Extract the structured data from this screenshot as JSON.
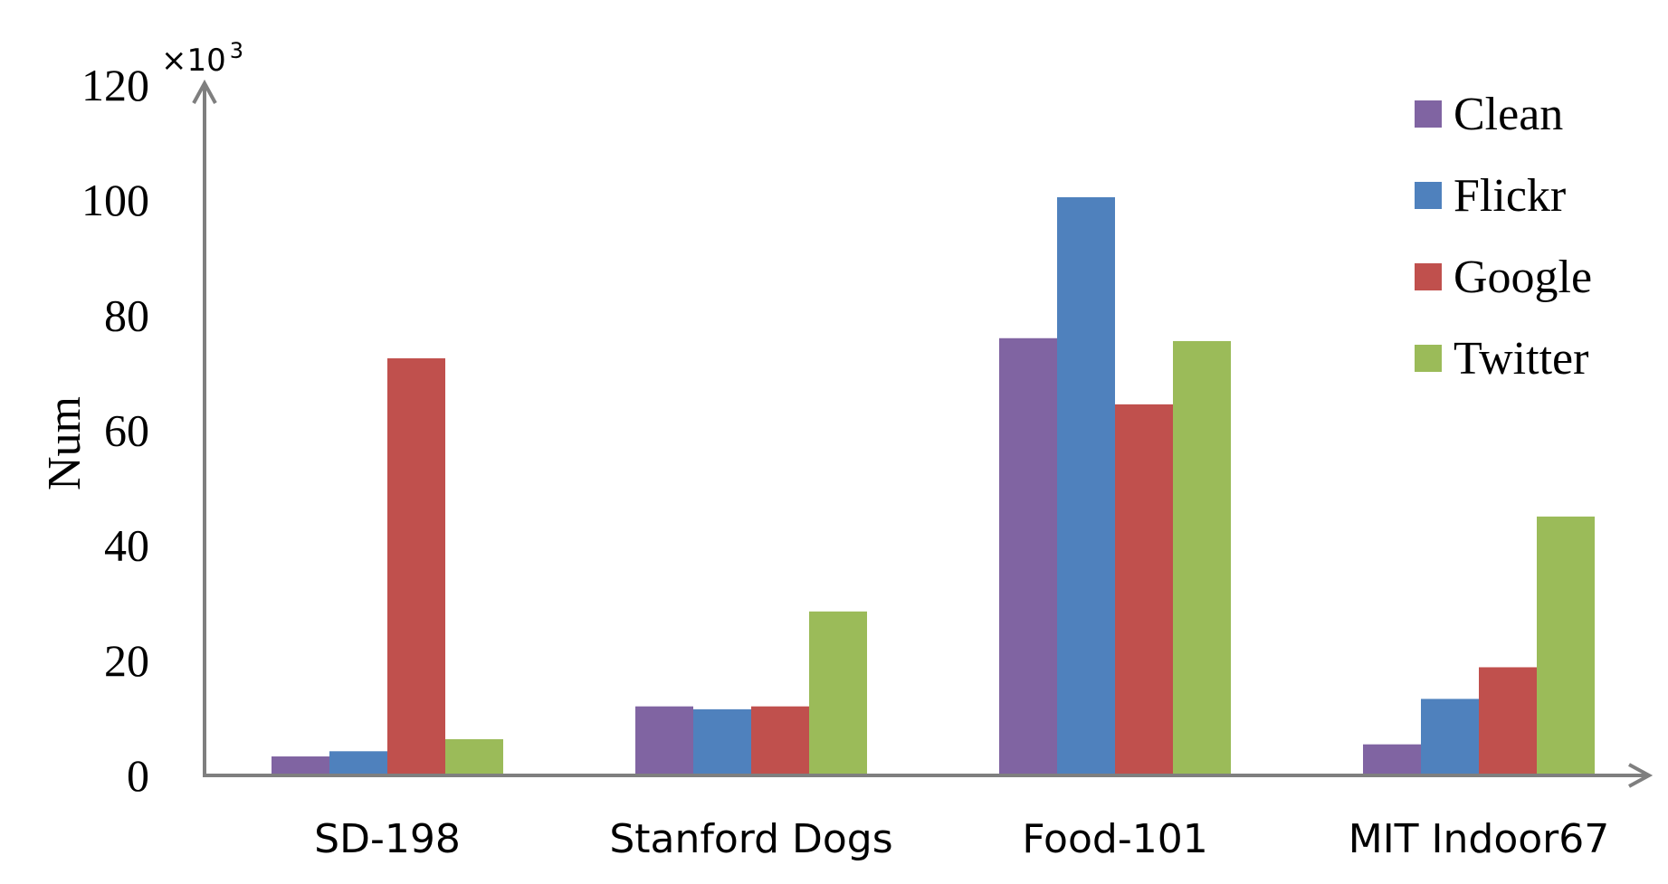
{
  "chart_data": {
    "type": "bar",
    "title": "",
    "xlabel": "",
    "ylabel": "Num",
    "y_multiplier": {
      "base": "×10",
      "exponent": "3"
    },
    "ylim": [
      0,
      120
    ],
    "yticks": [
      "0",
      "20",
      "40",
      "60",
      "80",
      "100",
      "120"
    ],
    "grid": false,
    "legend_position": "top-right",
    "categories": [
      "SD-198",
      "Stanford Dogs",
      "Food-101",
      "MIT Indoor67"
    ],
    "series": [
      {
        "name": "Clean",
        "color": "#8064a2",
        "values": [
          3.3,
          12.0,
          76.0,
          5.4
        ]
      },
      {
        "name": "Flickr",
        "color": "#4f81bd",
        "values": [
          4.2,
          11.5,
          100.5,
          13.3
        ]
      },
      {
        "name": "Google",
        "color": "#c0504d",
        "values": [
          72.5,
          12.0,
          64.5,
          18.8
        ]
      },
      {
        "name": "Twitter",
        "color": "#9bbb59",
        "values": [
          6.3,
          28.5,
          75.5,
          45.0
        ]
      }
    ]
  }
}
